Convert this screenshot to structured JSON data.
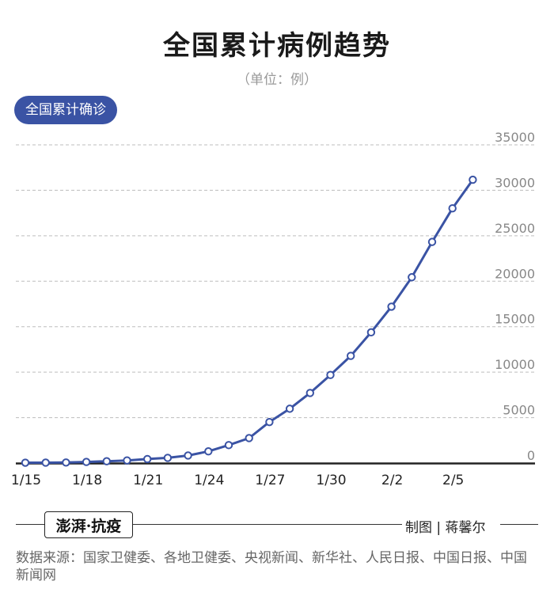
{
  "header": {
    "title": "全国累计病例趋势",
    "unit": "（单位：例）",
    "legend_label": "全国累计确诊"
  },
  "footer": {
    "brand": "澎湃·抗疫",
    "credit": "制图 | 蒋馨尔",
    "source": "数据来源：国家卫健委、各地卫健委、央视新闻、新华社、人民日报、中国日报、中国新闻网"
  },
  "colors": {
    "line": "#3a53a4",
    "grid": "#bdbdbd",
    "tick": "#888888",
    "axis": "#222222"
  },
  "chart_data": {
    "type": "line",
    "title": "全国累计病例趋势",
    "ylabel": "（单位：例）",
    "x": [
      "1/15",
      "1/16",
      "1/17",
      "1/18",
      "1/19",
      "1/20",
      "1/21",
      "1/22",
      "1/23",
      "1/24",
      "1/25",
      "1/26",
      "1/27",
      "1/28",
      "1/29",
      "1/30",
      "1/31",
      "2/1",
      "2/2",
      "2/3",
      "2/4",
      "2/5",
      "2/6"
    ],
    "x_tick_labels": [
      "1/15",
      "1/18",
      "1/21",
      "1/24",
      "1/27",
      "1/30",
      "2/2",
      "2/5"
    ],
    "series": [
      {
        "name": "全国累计确诊",
        "values": [
          41,
          45,
          62,
          121,
          198,
          291,
          440,
          571,
          830,
          1287,
          1975,
          2744,
          4515,
          5974,
          7711,
          9692,
          11791,
          14380,
          17205,
          20438,
          24324,
          28018,
          31161
        ]
      }
    ],
    "ylim": [
      0,
      35000
    ],
    "yticks": [
      0,
      5000,
      10000,
      15000,
      20000,
      25000,
      30000,
      35000
    ],
    "grid": true,
    "y_axis_side": "right",
    "legend": "top-left"
  }
}
